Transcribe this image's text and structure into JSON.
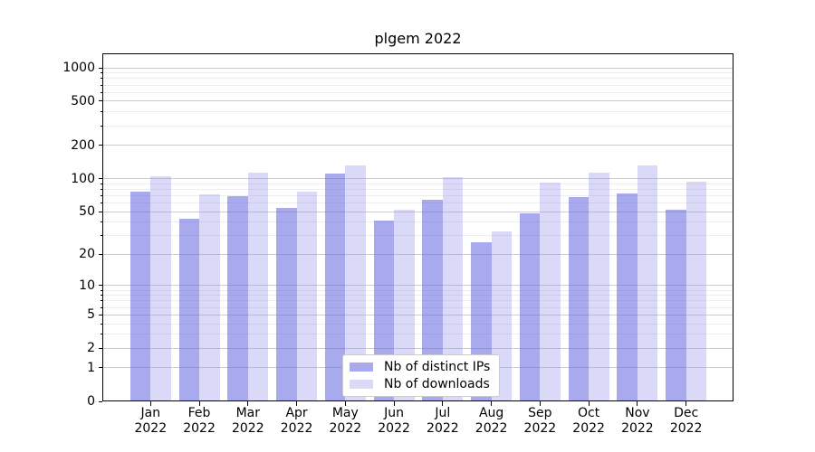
{
  "chart_data": {
    "type": "bar",
    "title": "plgem 2022",
    "categories": [
      "Jan",
      "Feb",
      "Mar",
      "Apr",
      "May",
      "Jun",
      "Jul",
      "Aug",
      "Sep",
      "Oct",
      "Nov",
      "Dec"
    ],
    "x_tick_second_line": "2022",
    "series": [
      {
        "name": "Nb of distinct IPs",
        "color_on_white": "#a9a9ee",
        "color_rgba": "rgba(98,98,224,0.55)",
        "values": [
          76,
          43,
          69,
          54,
          110,
          41,
          64,
          26,
          48,
          68,
          73,
          52
        ]
      },
      {
        "name": "Nb of downloads",
        "color_on_white": "#dadaf8",
        "color_rgba": "rgba(150,150,235,0.35)",
        "values": [
          104,
          72,
          113,
          76,
          132,
          52,
          102,
          33,
          91,
          114,
          131,
          94
        ]
      }
    ],
    "y_scale": "log(1+v)",
    "ylim": [
      0,
      1350
    ],
    "y_ticks": [
      1000,
      500,
      200,
      100,
      50,
      20,
      10,
      5,
      2,
      1,
      0
    ],
    "y_minor_gridlines": [
      3,
      4,
      6,
      7,
      8,
      9,
      30,
      40,
      60,
      70,
      80,
      90,
      300,
      400,
      600,
      700,
      800,
      900
    ],
    "xlabel": "",
    "ylabel": "",
    "grid": true,
    "legend_position": "lower center",
    "colors": {
      "grid_major": "#cccccc",
      "grid_minor": "#ececec",
      "spine": "#000000",
      "text": "#000000",
      "background": "#ffffff"
    }
  }
}
